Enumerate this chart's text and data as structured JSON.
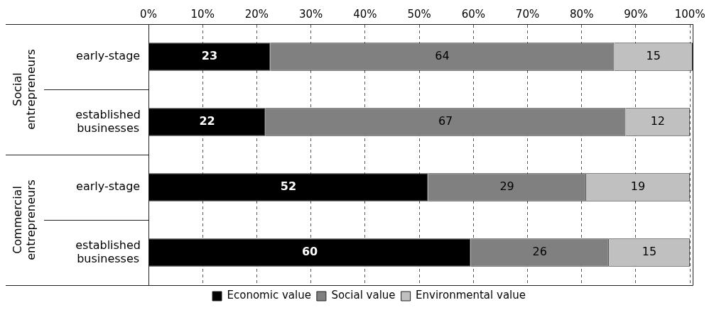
{
  "chart_data": {
    "type": "bar",
    "orientation": "horizontal",
    "stacked": true,
    "categories": [
      "early-stage",
      "established businesses",
      "early-stage",
      "established businesses"
    ],
    "series": [
      {
        "name": "Economic value",
        "color": "#000000",
        "values": [
          22.5,
          21.6,
          51.6,
          59.5
        ],
        "value_labels": [
          "23",
          "22",
          "52",
          "60"
        ]
      },
      {
        "name": "Social value",
        "color": "#808080",
        "values": [
          63.5,
          66.5,
          29.2,
          25.5
        ],
        "value_labels": [
          "64",
          "67",
          "29",
          "26"
        ]
      },
      {
        "name": "Environmental value",
        "color": "#c0c0c0",
        "values": [
          14.5,
          11.9,
          19.2,
          15
        ],
        "value_labels": [
          "15",
          "12",
          "19",
          "15"
        ]
      }
    ],
    "xlim": [
      0,
      100.5
    ],
    "xticks": [
      {
        "value": 0,
        "label": "0%"
      },
      {
        "value": 10,
        "label": "10%"
      },
      {
        "value": 20,
        "label": "20%"
      },
      {
        "value": 30,
        "label": "30%"
      },
      {
        "value": 40,
        "label": "40%"
      },
      {
        "value": 50,
        "label": "50%"
      },
      {
        "value": 60,
        "label": "60%"
      },
      {
        "value": 70,
        "label": "70%"
      },
      {
        "value": 80,
        "label": "80%"
      },
      {
        "value": 90,
        "label": "90%"
      },
      {
        "value": 100,
        "label": "100%"
      }
    ],
    "grid": "x",
    "legend": "bottom",
    "annotations": [
      "Social entrepreneurs",
      "Commercial entrepreneurs"
    ]
  }
}
